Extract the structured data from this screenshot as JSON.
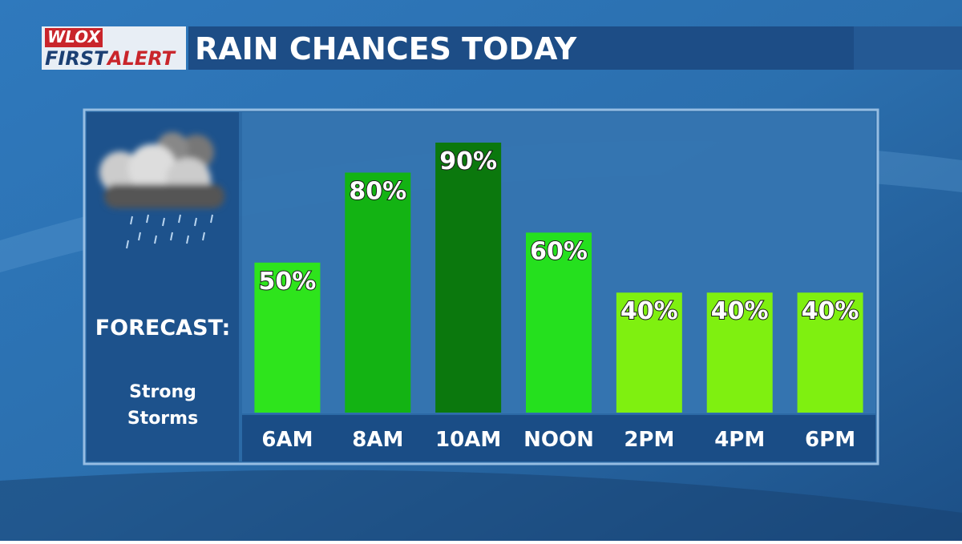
{
  "logo": {
    "station": "WLOX",
    "first": "FIRST",
    "alert": "ALERT"
  },
  "side_panel": {
    "heading": "FORECAST:",
    "condition_line1": "Strong",
    "condition_line2": "Storms"
  },
  "chart_data": {
    "type": "bar",
    "title": "RAIN CHANCES TODAY",
    "categories": [
      "6AM",
      "8AM",
      "10AM",
      "NOON",
      "2PM",
      "4PM",
      "6PM"
    ],
    "values": [
      50,
      80,
      90,
      60,
      40,
      40,
      40
    ],
    "value_labels": [
      "50%",
      "80%",
      "90%",
      "60%",
      "40%",
      "40%",
      "40%"
    ],
    "colors": [
      "#2ee41c",
      "#13b313",
      "#0b780d",
      "#25e01e",
      "#7ff010",
      "#7ff010",
      "#7ff010"
    ]
  }
}
